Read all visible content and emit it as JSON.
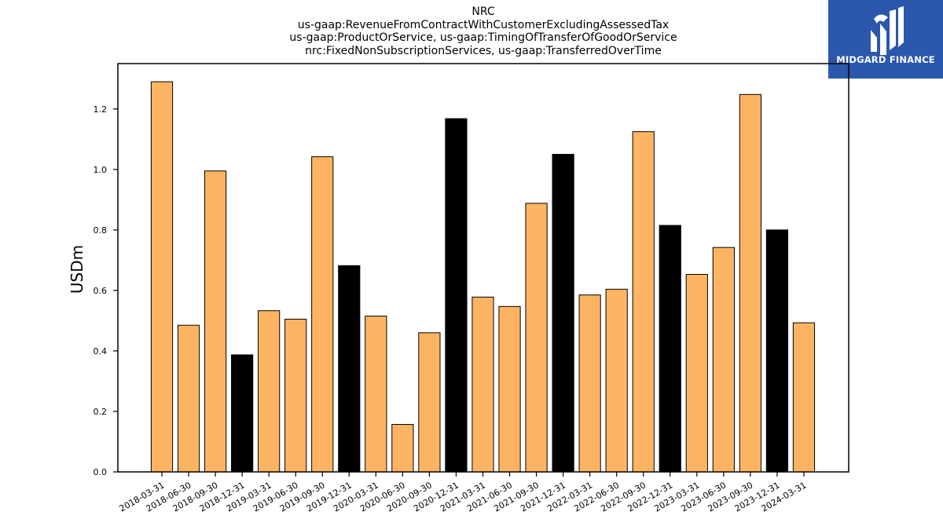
{
  "title_lines": [
    "NRC",
    "us-gaap:RevenueFromContractWithCustomerExcludingAssessedTax",
    "us-gaap:ProductOrService, us-gaap:TimingOfTransferOfGoodOrService",
    "nrc:FixedNonSubscriptionServices, us-gaap:TransferredOverTime"
  ],
  "logo": {
    "text": "MIDGARD FINANCE",
    "background": "#2b57ad",
    "icon": "midgard-logo-icon"
  },
  "colors": {
    "quarter_bar": "#fdb462",
    "year_end_bar": "#000000",
    "bar_edge": "#000000"
  },
  "chart_data": {
    "type": "bar",
    "ylabel": "USDm",
    "ylim": [
      0,
      1.35
    ],
    "yticks": [
      0.0,
      0.2,
      0.4,
      0.6,
      0.8,
      1.0,
      1.2
    ],
    "grid": false,
    "categories": [
      "2018-03-31",
      "2018-06-30",
      "2018-09-30",
      "2018-12-31",
      "2019-03-31",
      "2019-06-30",
      "2019-09-30",
      "2019-12-31",
      "2020-03-31",
      "2020-06-30",
      "2020-09-30",
      "2020-12-31",
      "2021-03-31",
      "2021-06-30",
      "2021-09-30",
      "2021-12-31",
      "2022-03-31",
      "2022-06-30",
      "2022-09-30",
      "2022-12-31",
      "2023-03-31",
      "2023-06-30",
      "2023-09-30",
      "2023-12-31",
      "2024-03-31"
    ],
    "values": [
      1.29,
      0.485,
      0.995,
      0.387,
      0.533,
      0.505,
      1.042,
      0.682,
      0.515,
      0.157,
      0.46,
      1.168,
      0.578,
      0.547,
      0.888,
      1.05,
      0.585,
      0.604,
      1.125,
      0.815,
      0.653,
      0.742,
      1.248,
      0.8,
      0.493
    ],
    "year_end": [
      false,
      false,
      false,
      true,
      false,
      false,
      false,
      true,
      false,
      false,
      false,
      true,
      false,
      false,
      false,
      true,
      false,
      false,
      false,
      true,
      false,
      false,
      false,
      true,
      false
    ]
  }
}
